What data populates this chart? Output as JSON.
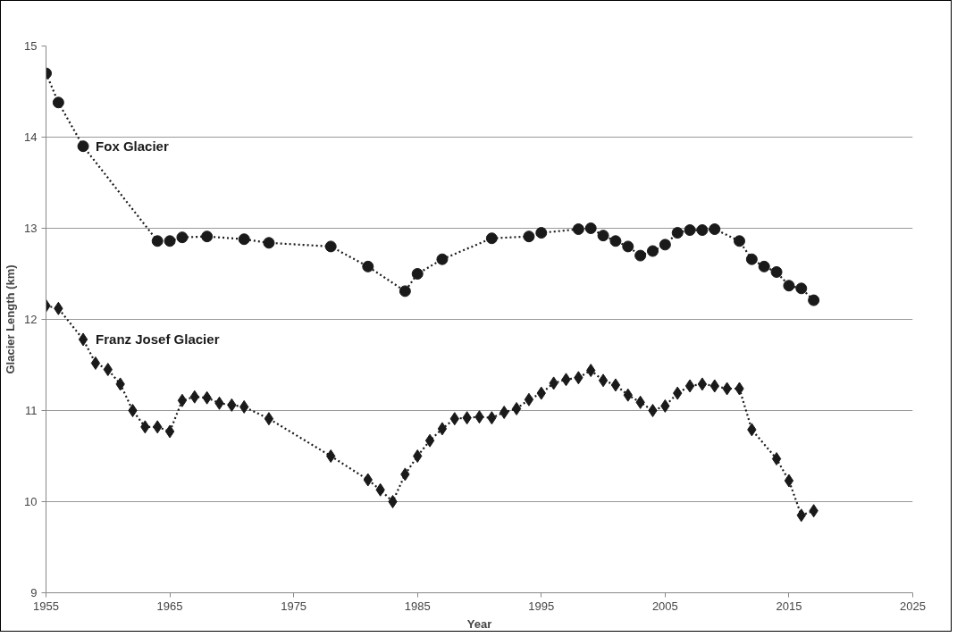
{
  "chart_data": {
    "type": "line",
    "xlabel": "Year",
    "ylabel": "Glacier Length (km)",
    "xlim": [
      1955,
      2025
    ],
    "xticks": [
      1955,
      1965,
      1975,
      1985,
      1995,
      2005,
      2015,
      2025
    ],
    "ylim": [
      9,
      15
    ],
    "yticks": [
      9,
      10,
      11,
      12,
      13,
      14,
      15
    ],
    "grid": "y",
    "line_style": "dotted",
    "series": [
      {
        "name": "Fox Glacier",
        "color": "#1a1a1a",
        "marker": "circle",
        "x": [
          1955,
          1956,
          1958,
          1964,
          1965,
          1966,
          1968,
          1971,
          1973,
          1978,
          1981,
          1984,
          1985,
          1987,
          1991,
          1994,
          1995,
          1998,
          1999,
          2000,
          2001,
          2002,
          2003,
          2004,
          2005,
          2006,
          2007,
          2008,
          2009,
          2011,
          2012,
          2013,
          2014,
          2015,
          2016,
          2017
        ],
        "values": [
          14.7,
          14.38,
          13.9,
          12.86,
          12.86,
          12.9,
          12.91,
          12.88,
          12.84,
          12.8,
          12.58,
          12.31,
          12.5,
          12.66,
          12.89,
          12.91,
          12.95,
          12.99,
          13.0,
          12.92,
          12.86,
          12.8,
          12.7,
          12.75,
          12.82,
          12.95,
          12.98,
          12.98,
          12.99,
          12.86,
          12.66,
          12.58,
          12.52,
          12.37,
          12.34,
          12.21
        ]
      },
      {
        "name": "Franz Josef Glacier",
        "color": "#1a1a1a",
        "marker": "diamond",
        "x": [
          1955,
          1956,
          1958,
          1959,
          1960,
          1961,
          1962,
          1963,
          1964,
          1965,
          1966,
          1967,
          1968,
          1969,
          1970,
          1971,
          1973,
          1978,
          1981,
          1982,
          1983,
          1984,
          1985,
          1986,
          1987,
          1988,
          1989,
          1990,
          1991,
          1992,
          1993,
          1994,
          1995,
          1996,
          1997,
          1998,
          1999,
          2000,
          2001,
          2002,
          2003,
          2004,
          2005,
          2006,
          2007,
          2008,
          2009,
          2010,
          2011,
          2012,
          2014,
          2015,
          2016,
          2017
        ],
        "values": [
          12.15,
          12.12,
          11.78,
          11.52,
          11.45,
          11.29,
          11.0,
          10.82,
          10.82,
          10.77,
          11.11,
          11.15,
          11.14,
          11.08,
          11.06,
          11.04,
          10.91,
          10.5,
          10.24,
          10.13,
          10.0,
          10.3,
          10.5,
          10.67,
          10.8,
          10.91,
          10.92,
          10.93,
          10.92,
          10.98,
          11.02,
          11.12,
          11.19,
          11.3,
          11.34,
          11.36,
          11.44,
          11.33,
          11.28,
          11.17,
          11.09,
          11.0,
          11.05,
          11.19,
          11.27,
          11.29,
          11.27,
          11.24,
          11.24,
          10.79,
          10.47,
          10.23,
          9.85,
          9.9
        ]
      }
    ]
  }
}
